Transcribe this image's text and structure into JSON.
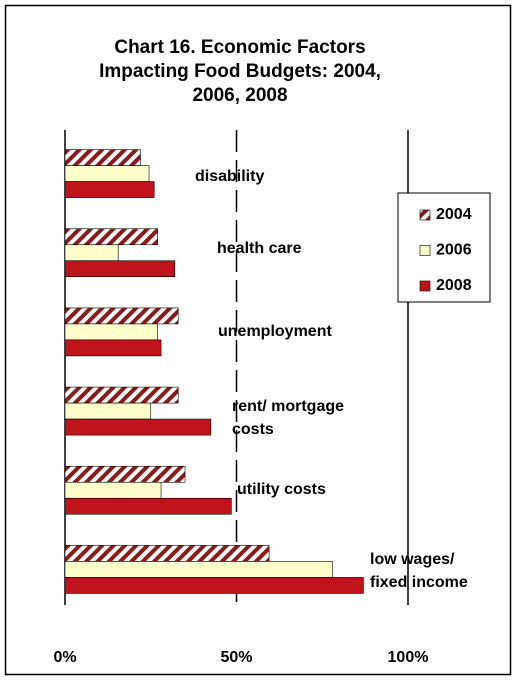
{
  "chart_data": {
    "type": "hbar",
    "title": "Chart 16. Economic Factors\nImpacting Food Budgets: 2004,\n2006, 2008",
    "categories": [
      "disability",
      "health care",
      "unemployment",
      "rent/ mortgage\ncosts",
      "utility costs",
      "low wages/\nfixed income"
    ],
    "series": [
      {
        "name": "2004",
        "color": "#8b1a1a",
        "pattern": "hatch",
        "values": [
          22,
          27,
          33,
          33,
          35,
          59.5
        ]
      },
      {
        "name": "2006",
        "color": "#ffffcc",
        "values": [
          24.5,
          15.5,
          27,
          25,
          28,
          78
        ]
      },
      {
        "name": "2008",
        "color": "#c0141c",
        "values": [
          26,
          32,
          28,
          42.5,
          48.5,
          87
        ]
      }
    ],
    "xlim": [
      0,
      100
    ],
    "xticks": [
      {
        "value": 0,
        "label": "0%"
      },
      {
        "value": 50,
        "label": "50%"
      },
      {
        "value": 100,
        "label": "100%"
      }
    ],
    "grid": true,
    "legend": "right"
  }
}
